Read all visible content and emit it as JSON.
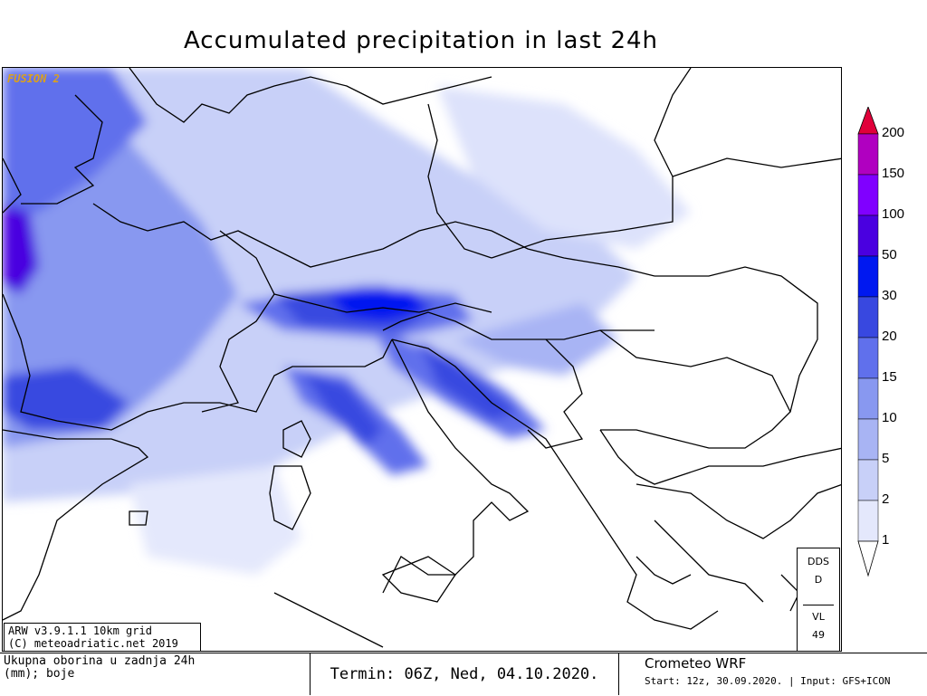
{
  "title": "Accumulated precipitation in last 24h",
  "map": {
    "badge": "FUSION 2"
  },
  "legend": {
    "labels": [
      "200",
      "150",
      "100",
      "50",
      "30",
      "20",
      "15",
      "10",
      "5",
      "2",
      "1"
    ],
    "colors": [
      "#e0003a",
      "#b000c0",
      "#8000ff",
      "#4a00e0",
      "#0018f0",
      "#3848e0",
      "#6070ec",
      "#8898f0",
      "#a8b4f4",
      "#c8d0f8",
      "#e4e8fc",
      "#ffffff"
    ]
  },
  "dds": {
    "l1": "DDS",
    "l2": "D",
    "l3": "VL",
    "l4": "49"
  },
  "version": {
    "line1": "ARW v3.9.1.1 10km grid",
    "line2": "(C) meteoadriatic.net 2019"
  },
  "footer": {
    "description_line1": "Ukupna oborina u zadnja 24h",
    "description_line2": "(mm); boje",
    "termin": "Termin: 06Z, Ned, 04.10.2020.",
    "model": "Crometeo WRF",
    "start": "Start: 12z, 30.09.2020. | Input: GFS+ICON"
  }
}
